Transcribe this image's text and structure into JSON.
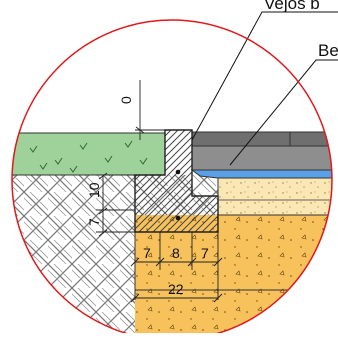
{
  "labels": {
    "vejos_b": "Vejos b",
    "be": "Be"
  },
  "dimensions": {
    "top_gap": "0",
    "curb_height": "10",
    "curb_embed": "7",
    "base_left": "7",
    "curb_width": "8",
    "base_right": "7",
    "base_total": "22"
  },
  "colors": {
    "grass": "#9fd29a",
    "asphalt": "#8e8e8e",
    "water_layer": "#5aa0e6",
    "sand": "#fbe7b4",
    "concrete_base": "#f7c15c",
    "soil_hatch": "#777777",
    "circle_outline": "#e0191b",
    "curb_hatch": "#444444"
  }
}
